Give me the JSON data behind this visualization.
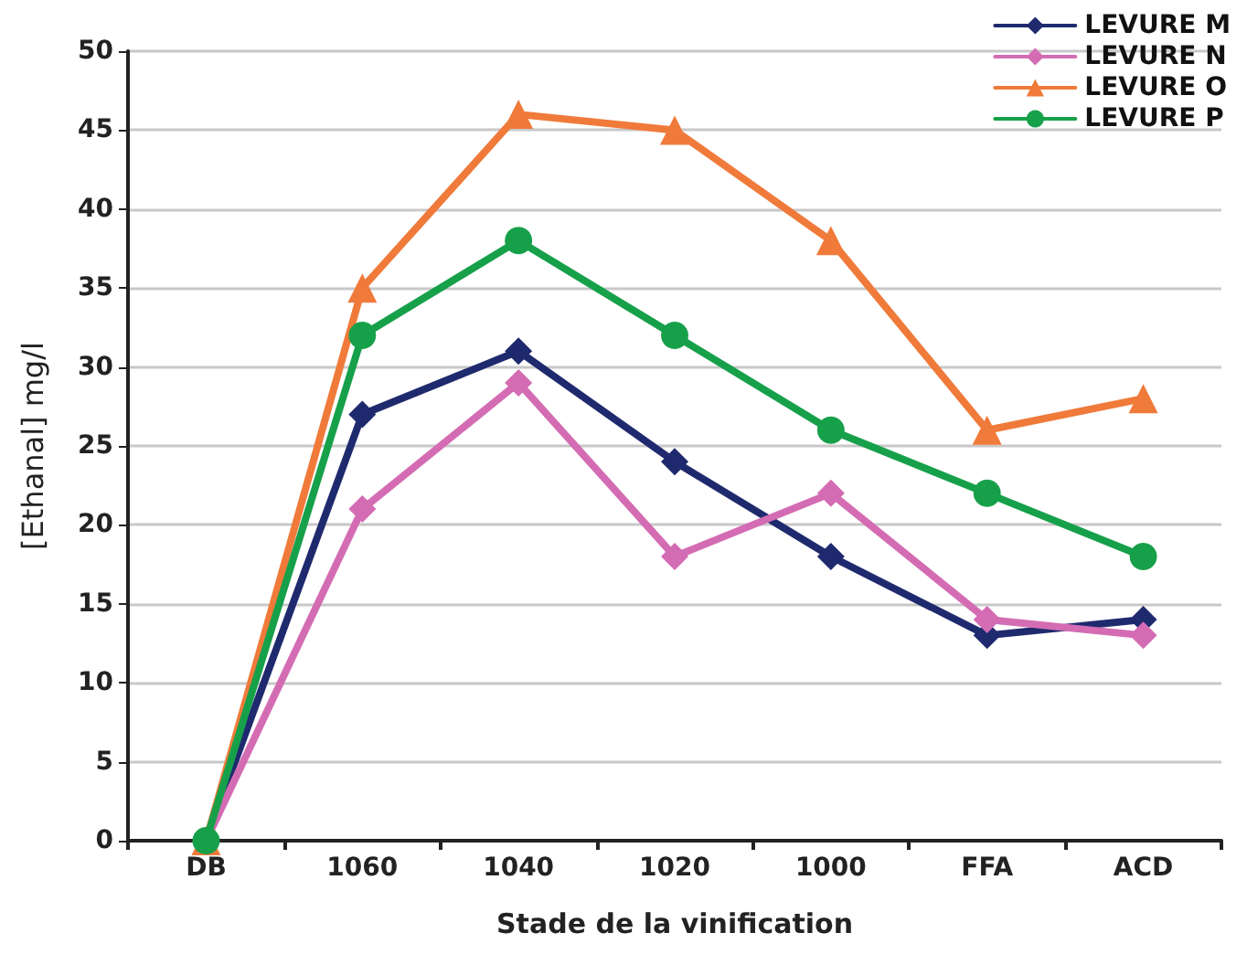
{
  "chart_data": {
    "type": "line",
    "xlabel": "Stade de la vinification",
    "ylabel": "[Ethanal] mg/l",
    "categories": [
      "DB",
      "1060",
      "1040",
      "1020",
      "1000",
      "FFA",
      "ACD"
    ],
    "series": [
      {
        "name": "LEVURE M",
        "color": "#1f2a6e",
        "marker": "diamond",
        "values": [
          0,
          27,
          31,
          24,
          18,
          13,
          14
        ]
      },
      {
        "name": "LEVURE N",
        "color": "#d46cb4",
        "marker": "diamond",
        "values": [
          0,
          21,
          29,
          18,
          22,
          14,
          13
        ]
      },
      {
        "name": "LEVURE O",
        "color": "#f07a3a",
        "marker": "triangle",
        "values": [
          0,
          35,
          46,
          45,
          38,
          26,
          28
        ]
      },
      {
        "name": "LEVURE P",
        "color": "#17a04a",
        "marker": "circle",
        "values": [
          0,
          32,
          38,
          32,
          26,
          22,
          18
        ]
      }
    ],
    "ylim": [
      0,
      50
    ],
    "yticks": [
      0,
      5,
      10,
      15,
      20,
      25,
      30,
      35,
      40,
      45,
      50
    ],
    "grid": "y",
    "legend": "top right",
    "line_style": "solid"
  }
}
